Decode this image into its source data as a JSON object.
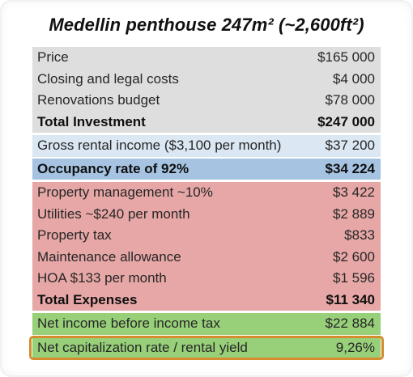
{
  "title": "Medellin penthouse 247m² (~2,600ft²)",
  "sections": {
    "investment": [
      {
        "label": "Price",
        "value": "$165 000"
      },
      {
        "label": "Closing and legal costs",
        "value": "$4 000"
      },
      {
        "label": "Renovations budget",
        "value": "$78 000"
      },
      {
        "label": "Total Investment",
        "value": "$247 000"
      }
    ],
    "gross": {
      "label": "Gross rental income ($3,100 per month)",
      "value": "$37 200"
    },
    "occupancy": {
      "label": "Occupancy rate of 92%",
      "value": "$34 224"
    },
    "expenses": [
      {
        "label": "Property management ~10%",
        "value": "$3 422"
      },
      {
        "label": "Utilities ~$240 per month",
        "value": "$2 889"
      },
      {
        "label": "Property tax",
        "value": "$833"
      },
      {
        "label": "Maintenance allowance",
        "value": "$2 600"
      },
      {
        "label": "HOA $133 per month",
        "value": "$1 596"
      },
      {
        "label": "Total Expenses",
        "value": "$11 340"
      }
    ],
    "net_income": {
      "label": "Net income before income tax",
      "value": "$22 884"
    },
    "cap_rate": {
      "label": "Net capitalization rate / rental yield",
      "value": "9,26%"
    }
  },
  "colors": {
    "investment_bg": "#dedede",
    "gross_bg": "#dbe7f3",
    "occupancy_bg": "#a6c3e2",
    "expenses_bg": "#e8a7a7",
    "net_bg": "#98d07a",
    "highlight_border": "#d48c2c"
  }
}
